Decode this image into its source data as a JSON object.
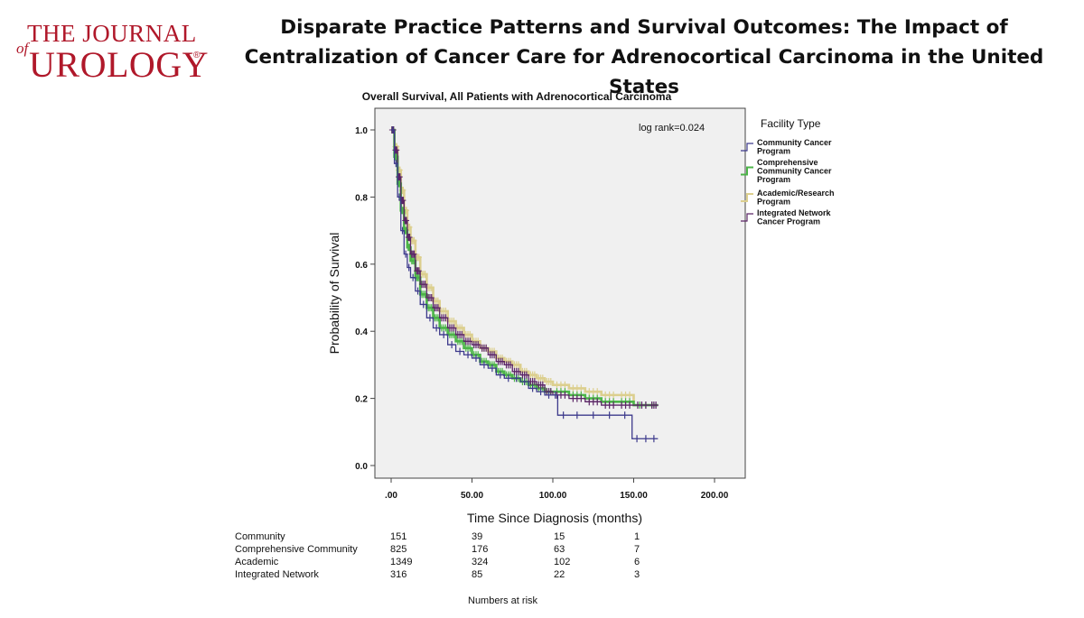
{
  "journal": {
    "line1": "THE JOURNAL",
    "of": "of",
    "line2": "UROLOGY",
    "registered": "®"
  },
  "headline": "Disparate Practice Patterns and Survival Outcomes: The Impact of Centralization of Cancer Care for Adrenocortical Carcinoma in the United States",
  "chart_data": {
    "type": "line",
    "step": true,
    "title": "Overall Survival, All Patients with Adrenocortical Carcinoma",
    "xlabel": "Time Since Diagnosis (months)",
    "ylabel": "Probability of Survival",
    "xlim": [
      0,
      200
    ],
    "ylim": [
      0,
      1.05
    ],
    "xticks": [
      0,
      50,
      100,
      150,
      200
    ],
    "xtick_labels": [
      ".00",
      "50.00",
      "100.00",
      "150.00",
      "200.00"
    ],
    "yticks": [
      0.0,
      0.2,
      0.4,
      0.6,
      0.8,
      1.0
    ],
    "ytick_labels": [
      "0.0",
      "0.2",
      "0.4",
      "0.6",
      "0.8",
      "1.0"
    ],
    "annotation": "log rank=0.024",
    "legend_title": "Facility Type",
    "legend_position": "right",
    "series": [
      {
        "name": "Community Cancer Program",
        "color": "#3d3a8c",
        "x": [
          0,
          2,
          4,
          6,
          8,
          10,
          12,
          15,
          18,
          22,
          26,
          30,
          35,
          40,
          45,
          50,
          55,
          60,
          65,
          70,
          75,
          80,
          85,
          90,
          95,
          100,
          103,
          110,
          120,
          130,
          140,
          149,
          155,
          160,
          165
        ],
        "y": [
          1.0,
          0.9,
          0.8,
          0.7,
          0.63,
          0.59,
          0.56,
          0.52,
          0.48,
          0.44,
          0.41,
          0.39,
          0.36,
          0.34,
          0.33,
          0.32,
          0.3,
          0.29,
          0.27,
          0.26,
          0.26,
          0.25,
          0.23,
          0.22,
          0.21,
          0.21,
          0.15,
          0.15,
          0.15,
          0.15,
          0.15,
          0.08,
          0.08,
          0.08,
          0.08
        ]
      },
      {
        "name": "Comprehensive Community Cancer Program",
        "color": "#4cb548",
        "x": [
          0,
          2,
          4,
          6,
          8,
          10,
          12,
          15,
          18,
          22,
          26,
          30,
          35,
          40,
          45,
          50,
          55,
          60,
          65,
          70,
          75,
          80,
          85,
          90,
          95,
          100,
          110,
          120,
          130,
          140,
          150,
          165
        ],
        "y": [
          1.0,
          0.92,
          0.84,
          0.76,
          0.7,
          0.65,
          0.61,
          0.56,
          0.51,
          0.47,
          0.44,
          0.41,
          0.39,
          0.37,
          0.35,
          0.33,
          0.31,
          0.3,
          0.28,
          0.27,
          0.26,
          0.25,
          0.24,
          0.23,
          0.22,
          0.22,
          0.21,
          0.2,
          0.19,
          0.19,
          0.18,
          0.18
        ]
      },
      {
        "name": "Academic/Research Program",
        "color": "#dccf8e",
        "x": [
          0,
          2,
          4,
          6,
          8,
          10,
          12,
          15,
          18,
          22,
          26,
          30,
          35,
          40,
          45,
          50,
          55,
          60,
          65,
          70,
          75,
          80,
          85,
          90,
          95,
          100,
          110,
          120,
          130,
          140,
          150
        ],
        "y": [
          1.0,
          0.95,
          0.88,
          0.82,
          0.76,
          0.71,
          0.67,
          0.62,
          0.57,
          0.53,
          0.49,
          0.46,
          0.43,
          0.41,
          0.39,
          0.37,
          0.35,
          0.34,
          0.32,
          0.31,
          0.3,
          0.28,
          0.27,
          0.26,
          0.25,
          0.24,
          0.23,
          0.22,
          0.21,
          0.21,
          0.19
        ]
      },
      {
        "name": "Integrated Network Cancer Program",
        "color": "#5b2566",
        "x": [
          0,
          2,
          4,
          6,
          8,
          10,
          12,
          15,
          18,
          22,
          26,
          30,
          35,
          40,
          45,
          50,
          55,
          60,
          65,
          70,
          75,
          80,
          85,
          90,
          95,
          100,
          110,
          120,
          130,
          140,
          150,
          160,
          165
        ],
        "y": [
          1.0,
          0.94,
          0.86,
          0.79,
          0.73,
          0.68,
          0.63,
          0.58,
          0.54,
          0.5,
          0.47,
          0.44,
          0.41,
          0.39,
          0.37,
          0.36,
          0.35,
          0.33,
          0.31,
          0.3,
          0.28,
          0.27,
          0.25,
          0.24,
          0.22,
          0.21,
          0.2,
          0.19,
          0.18,
          0.18,
          0.18,
          0.18,
          0.18
        ]
      }
    ]
  },
  "numbers_at_risk": {
    "caption": "Numbers at risk",
    "rows": [
      {
        "label": "Community",
        "values": [
          "151",
          "39",
          "15",
          "1"
        ]
      },
      {
        "label": "Comprehensive Community",
        "values": [
          "825",
          "176",
          "63",
          "7"
        ]
      },
      {
        "label": "Academic",
        "values": [
          "1349",
          "324",
          "102",
          "6"
        ]
      },
      {
        "label": "Integrated Network",
        "values": [
          "316",
          "85",
          "22",
          "3"
        ]
      }
    ]
  }
}
